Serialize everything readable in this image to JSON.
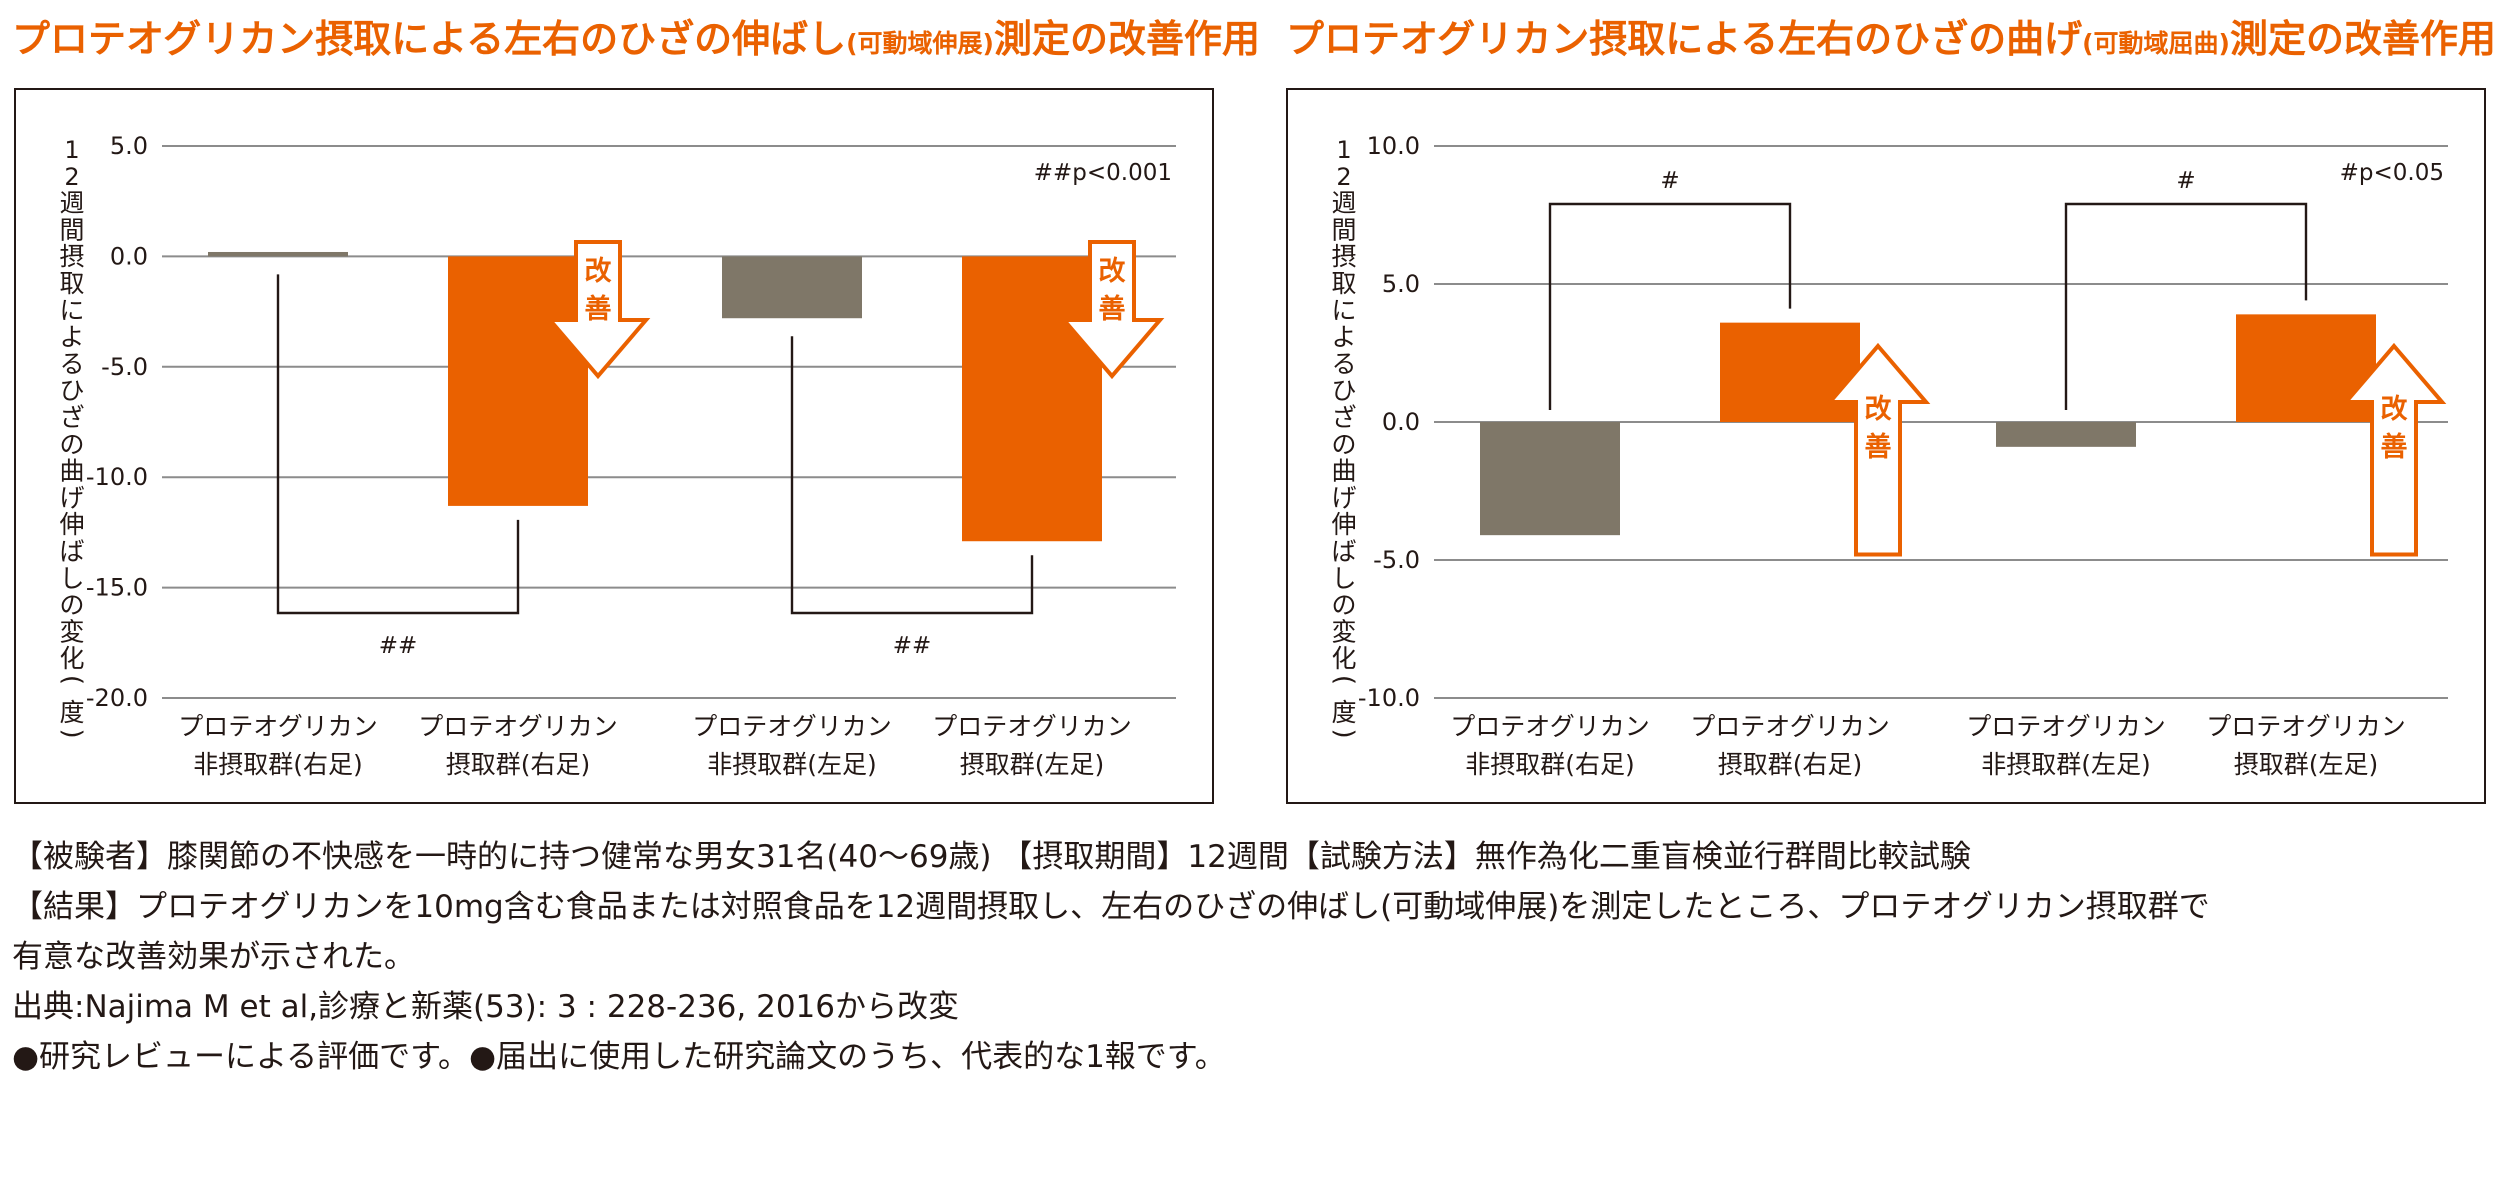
{
  "charts_text": [
    {
      "title_main": "プロテオグリカン摂取による左右のひざの伸ばし",
      "title_sub": "(可動域伸展)",
      "title_end": "測定の改善作用"
    },
    {
      "title_main": "プロテオグリカン摂取による左右のひざの曲げ",
      "title_sub": "(可動域屈曲)",
      "title_end": "測定の改善作用"
    }
  ],
  "colors": {
    "accent": "#ea6100",
    "control": "#7f7768",
    "grid": "#8c8c8c",
    "text": "#231815"
  },
  "chart_data": [
    {
      "type": "bar",
      "ylabel": "12週間摂取によるひざの曲げ伸ばしの変化(度)",
      "ylim": [
        -20,
        5
      ],
      "yticks": [
        5,
        0,
        -5,
        -10,
        -15,
        -20
      ],
      "ytick_labels": [
        "5.0",
        "0.0",
        "-5.0",
        "-10.0",
        "-15.0",
        "-20.0"
      ],
      "categories": [
        [
          "プロテオグリカン",
          "非摂取群(右足)"
        ],
        [
          "プロテオグリカン",
          "摂取群(右足)"
        ],
        [
          "プロテオグリカン",
          "非摂取群(左足)"
        ],
        [
          "プロテオグリカン",
          "摂取群(左足)"
        ]
      ],
      "values": [
        0.2,
        -11.3,
        -2.8,
        -12.9
      ],
      "bar_colors": [
        "control",
        "accent",
        "control",
        "accent"
      ],
      "significance_note": "##p<0.001",
      "brackets": [
        {
          "from": 0,
          "to": 1,
          "label": "##",
          "position": "below"
        },
        {
          "from": 2,
          "to": 3,
          "label": "##",
          "position": "below"
        }
      ],
      "improvement_arrows": [
        {
          "bar": 1,
          "direction": "down",
          "label": [
            "改",
            "善"
          ]
        },
        {
          "bar": 3,
          "direction": "down",
          "label": [
            "改",
            "善"
          ]
        }
      ],
      "grid": true
    },
    {
      "type": "bar",
      "ylabel": "12週間摂取によるひざの曲げ伸ばしの変化(度)",
      "ylim": [
        -10,
        10
      ],
      "yticks": [
        10,
        5,
        0,
        -5,
        -10
      ],
      "ytick_labels": [
        "10.0",
        "5.0",
        "0.0",
        "-5.0",
        "-10.0"
      ],
      "categories": [
        [
          "プロテオグリカン",
          "非摂取群(右足)"
        ],
        [
          "プロテオグリカン",
          "摂取群(右足)"
        ],
        [
          "プロテオグリカン",
          "非摂取群(左足)"
        ],
        [
          "プロテオグリカン",
          "摂取群(左足)"
        ]
      ],
      "values": [
        -4.1,
        3.6,
        -0.9,
        3.9
      ],
      "bar_colors": [
        "control",
        "accent",
        "control",
        "accent"
      ],
      "significance_note": "#p<0.05",
      "brackets": [
        {
          "from": 0,
          "to": 1,
          "label": "#",
          "position": "above"
        },
        {
          "from": 2,
          "to": 3,
          "label": "#",
          "position": "above"
        }
      ],
      "improvement_arrows": [
        {
          "bar": 1,
          "direction": "up",
          "label": [
            "改",
            "善"
          ]
        },
        {
          "bar": 3,
          "direction": "up",
          "label": [
            "改",
            "善"
          ]
        }
      ],
      "grid": true
    }
  ],
  "notes": {
    "line1": "【被験者】膝関節の不快感を一時的に持つ健常な男女31名(40〜69歳) 【摂取期間】12週間【試験方法】無作為化二重盲検並行群間比較試験",
    "line2": "【結果】プロテオグリカンを10mg含む食品または対照食品を12週間摂取し、左右のひざの伸ばし(可動域伸展)を測定したところ、プロテオグリカン摂取群で",
    "line3": "有意な改善効果が示された。",
    "line4": "出典:Najima M et al,診療と新薬(53): 3 : 228-236, 2016から改変",
    "line5": "●研究レビューによる評価です。●届出に使用した研究論文のうち、代表的な1報です。"
  }
}
